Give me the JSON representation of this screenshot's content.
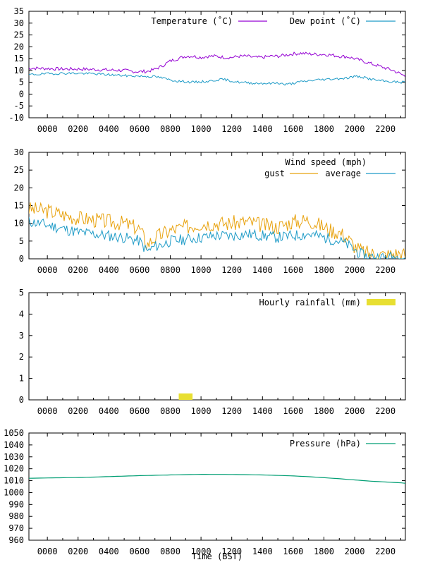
{
  "chart_data": [
    {
      "type": "line",
      "ylim": [
        -10,
        35
      ],
      "yticks": [
        -10,
        -5,
        0,
        5,
        10,
        15,
        20,
        25,
        30,
        35
      ],
      "xticks": [
        "0000",
        "0200",
        "0400",
        "0600",
        "0800",
        "1000",
        "1200",
        "1400",
        "1600",
        "1800",
        "2000",
        "2200"
      ],
      "legend_title": "",
      "legend_position": "top-right",
      "series": [
        {
          "name": "Temperature (˚C)",
          "color": "#9400d3",
          "x": [
            -1.2,
            0,
            1,
            2,
            3,
            4,
            5,
            5.5,
            6,
            6.5,
            7,
            7.5,
            8,
            8.5,
            9,
            9.5,
            10,
            10.5,
            11,
            11.5,
            12,
            12.5,
            13,
            13.5,
            14,
            14.5,
            15,
            15.5,
            16,
            16.5,
            17,
            17.5,
            18,
            18.5,
            19,
            19.5,
            20,
            20.5,
            21,
            21.5,
            22,
            22.5,
            23,
            23.3
          ],
          "values": [
            11,
            10.8,
            10.6,
            10.6,
            10.4,
            10.2,
            10,
            9.6,
            9.5,
            9.6,
            10.5,
            12,
            14,
            15,
            16,
            16,
            15.5,
            16,
            16,
            15.5,
            15.5,
            16,
            16,
            15.5,
            15.5,
            16,
            16,
            16.5,
            17,
            17.3,
            17,
            16.8,
            16.8,
            16.5,
            16,
            15.8,
            15,
            14,
            13,
            12,
            11,
            10,
            8.5,
            7.5
          ],
          "noise": 0.7,
          "seed": 7
        },
        {
          "name": "Dew point (˚C)",
          "color": "#1e9bc7",
          "x": [
            -1.2,
            0,
            1,
            2,
            3,
            4,
            5,
            6,
            7,
            7.5,
            8,
            8.5,
            9,
            9.5,
            10,
            10.5,
            11,
            11.5,
            12,
            12.5,
            13,
            13.5,
            14,
            14.5,
            15,
            15.5,
            16,
            16.5,
            17,
            17.5,
            18,
            18.5,
            19,
            19.5,
            20,
            20.5,
            21,
            21.5,
            22,
            22.5,
            23,
            23.3
          ],
          "values": [
            8.2,
            8.6,
            8.8,
            8.8,
            8.6,
            8.2,
            7.8,
            7.6,
            7.4,
            6.8,
            6,
            5.5,
            5.2,
            5,
            5.2,
            5.4,
            6,
            6.2,
            5.5,
            5,
            4.8,
            4.6,
            4.6,
            4.5,
            4.8,
            4,
            4.6,
            5.2,
            5.6,
            6,
            6.2,
            6.4,
            6.6,
            6.8,
            7.5,
            7.2,
            6.4,
            5.8,
            5.4,
            5.2,
            5,
            5
          ],
          "noise": 0.5,
          "seed": 19
        }
      ]
    },
    {
      "type": "line",
      "ylim": [
        0,
        30
      ],
      "yticks": [
        0,
        5,
        10,
        15,
        20,
        25,
        30
      ],
      "xticks": [
        "0000",
        "0200",
        "0400",
        "0600",
        "0800",
        "1000",
        "1200",
        "1400",
        "1600",
        "1800",
        "2000",
        "2200"
      ],
      "legend_title": "Wind speed (mph)",
      "legend_position": "top-right",
      "series": [
        {
          "name": "gust",
          "color": "#e8a20e",
          "x": [
            -1.2,
            0,
            1,
            2,
            3,
            4,
            5,
            6,
            6.5,
            7,
            7.5,
            8,
            9,
            10,
            11,
            12,
            13,
            14,
            15,
            16,
            17,
            18,
            18.5,
            19,
            19.5,
            20,
            20.5,
            21,
            21.5,
            22,
            22.5,
            23,
            23.3
          ],
          "values": [
            14,
            13.5,
            12.5,
            11.5,
            11,
            10.5,
            10,
            8.5,
            4,
            6,
            7,
            8,
            9,
            10,
            10,
            10,
            10.5,
            9.5,
            9,
            10.5,
            11,
            9,
            8,
            7.5,
            6,
            3.5,
            2,
            1.5,
            1.5,
            1,
            1.5,
            1.5,
            1
          ],
          "noise": 2.2,
          "seed": 3,
          "min": 0
        },
        {
          "name": "average",
          "color": "#1e9bc7",
          "x": [
            -1.2,
            0,
            1,
            2,
            3,
            4,
            5,
            6,
            6.5,
            7,
            7.5,
            8,
            9,
            10,
            11,
            12,
            13,
            14,
            15,
            16,
            17,
            18,
            18.5,
            19,
            19.5,
            20,
            20.5,
            21,
            21.5,
            22,
            22.5,
            23,
            23.3
          ],
          "values": [
            10.5,
            9.5,
            8.5,
            7.5,
            7,
            6.5,
            6,
            5,
            2,
            3.5,
            4,
            5,
            5.5,
            6,
            6.5,
            6.5,
            7,
            6.5,
            6,
            6.5,
            7,
            6,
            5.5,
            5,
            4,
            2.5,
            1,
            0.5,
            0.5,
            0.3,
            0.5,
            0.5,
            0.5
          ],
          "noise": 1.6,
          "seed": 11,
          "min": 0
        }
      ]
    },
    {
      "type": "bar",
      "ylim": [
        0,
        5
      ],
      "yticks": [
        0,
        1,
        2,
        3,
        4,
        5
      ],
      "xticks": [
        "0000",
        "0200",
        "0400",
        "0600",
        "0800",
        "1000",
        "1200",
        "1400",
        "1600",
        "1800",
        "2000",
        "2200"
      ],
      "legend_title": "",
      "legend_position": "top-right",
      "series": [
        {
          "name": "Hourly rainfall (mm)",
          "color": "#e8df32",
          "bars": [
            {
              "x": 9.0,
              "value": 0.3
            }
          ]
        }
      ]
    },
    {
      "type": "line",
      "ylim": [
        960,
        1050
      ],
      "yticks": [
        960,
        970,
        980,
        990,
        1000,
        1010,
        1020,
        1030,
        1040,
        1050
      ],
      "xticks": [
        "0000",
        "0200",
        "0400",
        "0600",
        "0800",
        "1000",
        "1200",
        "1400",
        "1600",
        "1800",
        "2000",
        "2200"
      ],
      "xlabel": "Time (BST)",
      "legend_title": "",
      "legend_position": "top-right",
      "series": [
        {
          "name": "Pressure (hPa)",
          "color": "#009e73",
          "x": [
            -1.2,
            0,
            2,
            4,
            6,
            8,
            10,
            12,
            14,
            16,
            17,
            18,
            19,
            20,
            21,
            22,
            23,
            23.3
          ],
          "values": [
            1012,
            1012.3,
            1012.6,
            1013.4,
            1014.2,
            1014.8,
            1015.3,
            1015.2,
            1014.8,
            1014,
            1013.3,
            1012.5,
            1011.6,
            1010.6,
            1009.6,
            1008.9,
            1008.2,
            1007.8
          ],
          "noise": 0,
          "seed": 1
        }
      ]
    }
  ]
}
